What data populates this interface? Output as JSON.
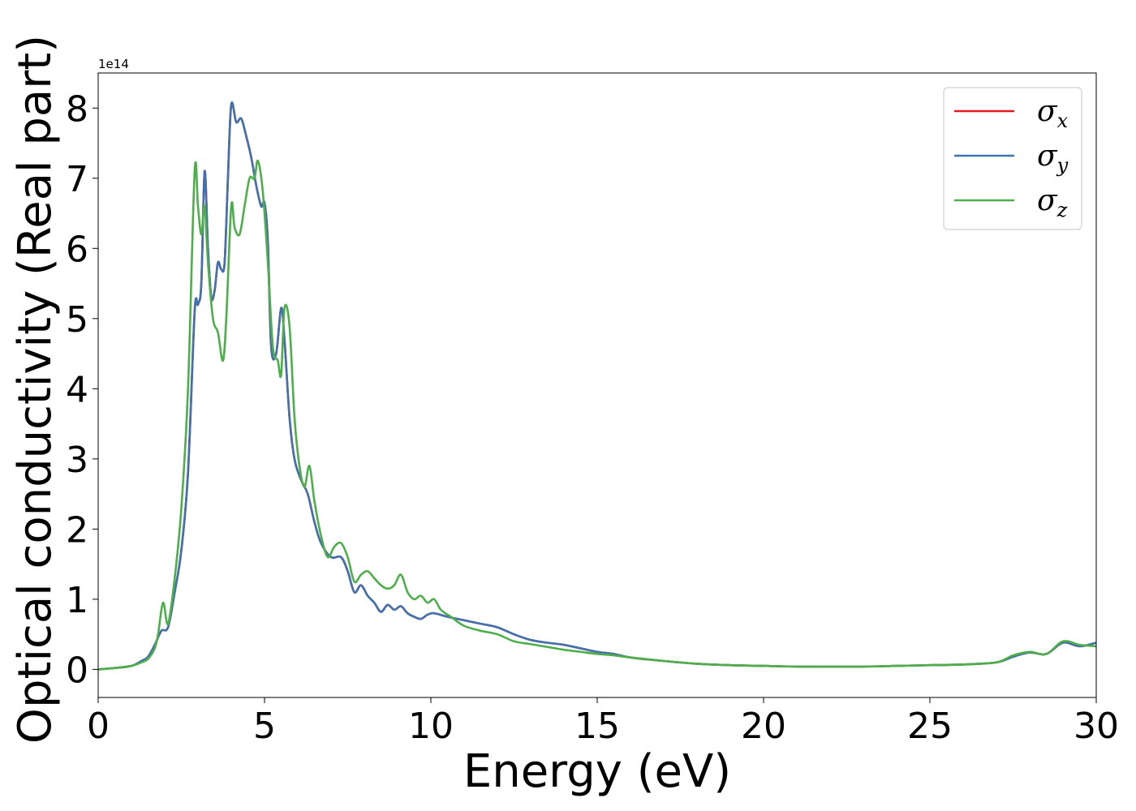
{
  "chart_data": {
    "type": "line",
    "xlabel": "Energy (eV)",
    "ylabel": "Optical conductivity (Real part)",
    "y_offset_label": "1e14",
    "xlim": [
      0,
      30
    ],
    "ylim": [
      -0.4,
      8.5
    ],
    "xticks": [
      0,
      5,
      10,
      15,
      20,
      25,
      30
    ],
    "xtick_labels": [
      "0",
      "5",
      "10",
      "15",
      "20",
      "25",
      "30"
    ],
    "yticks": [
      0,
      1,
      2,
      3,
      4,
      5,
      6,
      7,
      8
    ],
    "ytick_labels": [
      "0",
      "1",
      "2",
      "3",
      "4",
      "5",
      "6",
      "7",
      "8"
    ],
    "grid": false,
    "legend_position": "top-right",
    "series": [
      {
        "name": "σx",
        "symbol": "σ",
        "subscript": "x",
        "color": "#e41a1c",
        "x": [
          0,
          0.5,
          1,
          1.3,
          1.5,
          1.7,
          1.9,
          2.1,
          2.3,
          2.5,
          2.7,
          2.9,
          3.0,
          3.1,
          3.2,
          3.3,
          3.4,
          3.5,
          3.6,
          3.7,
          3.8,
          3.9,
          4.0,
          4.15,
          4.3,
          4.45,
          4.6,
          4.75,
          4.9,
          5.0,
          5.1,
          5.2,
          5.35,
          5.5,
          5.6,
          5.75,
          5.9,
          6.1,
          6.3,
          6.5,
          6.7,
          7.0,
          7.3,
          7.5,
          7.7,
          7.9,
          8.1,
          8.3,
          8.5,
          8.7,
          8.9,
          9.1,
          9.3,
          9.5,
          9.7,
          9.9,
          10.1,
          10.5,
          11,
          11.5,
          12,
          12.5,
          13,
          13.5,
          14,
          14.5,
          15,
          15.5,
          16,
          17,
          18,
          19,
          20,
          21,
          22,
          23,
          24,
          25,
          26,
          27,
          27.5,
          28,
          28.5,
          29,
          29.5,
          30
        ],
        "y": [
          0,
          0.02,
          0.05,
          0.12,
          0.18,
          0.35,
          0.55,
          0.6,
          1.1,
          1.7,
          2.8,
          5.1,
          5.2,
          5.5,
          7.1,
          6.0,
          5.3,
          5.4,
          5.8,
          5.7,
          5.8,
          7.0,
          8.05,
          7.8,
          7.85,
          7.6,
          7.3,
          6.9,
          6.6,
          6.65,
          6.1,
          4.6,
          4.5,
          5.15,
          4.7,
          3.6,
          3.0,
          2.7,
          2.5,
          2.1,
          1.8,
          1.6,
          1.6,
          1.4,
          1.1,
          1.2,
          1.05,
          0.95,
          0.82,
          0.92,
          0.85,
          0.9,
          0.8,
          0.75,
          0.72,
          0.78,
          0.8,
          0.75,
          0.7,
          0.65,
          0.6,
          0.5,
          0.42,
          0.38,
          0.35,
          0.3,
          0.25,
          0.22,
          0.17,
          0.12,
          0.08,
          0.06,
          0.05,
          0.04,
          0.04,
          0.04,
          0.05,
          0.06,
          0.07,
          0.1,
          0.18,
          0.24,
          0.22,
          0.38,
          0.33,
          0.38
        ]
      },
      {
        "name": "σy",
        "symbol": "σ",
        "subscript": "y",
        "color": "#3f72af",
        "x": [
          0,
          0.5,
          1,
          1.3,
          1.5,
          1.7,
          1.9,
          2.1,
          2.3,
          2.5,
          2.7,
          2.9,
          3.0,
          3.1,
          3.2,
          3.3,
          3.4,
          3.5,
          3.6,
          3.7,
          3.8,
          3.9,
          4.0,
          4.15,
          4.3,
          4.45,
          4.6,
          4.75,
          4.9,
          5.0,
          5.1,
          5.2,
          5.35,
          5.5,
          5.6,
          5.75,
          5.9,
          6.1,
          6.3,
          6.5,
          6.7,
          7.0,
          7.3,
          7.5,
          7.7,
          7.9,
          8.1,
          8.3,
          8.5,
          8.7,
          8.9,
          9.1,
          9.3,
          9.5,
          9.7,
          9.9,
          10.1,
          10.5,
          11,
          11.5,
          12,
          12.5,
          13,
          13.5,
          14,
          14.5,
          15,
          15.5,
          16,
          17,
          18,
          19,
          20,
          21,
          22,
          23,
          24,
          25,
          26,
          27,
          27.5,
          28,
          28.5,
          29,
          29.5,
          30
        ],
        "y": [
          0,
          0.02,
          0.05,
          0.12,
          0.18,
          0.35,
          0.55,
          0.6,
          1.1,
          1.7,
          2.8,
          5.1,
          5.2,
          5.5,
          7.1,
          6.0,
          5.3,
          5.4,
          5.8,
          5.7,
          5.8,
          7.0,
          8.05,
          7.8,
          7.85,
          7.6,
          7.3,
          6.9,
          6.6,
          6.65,
          6.1,
          4.6,
          4.5,
          5.15,
          4.7,
          3.6,
          3.0,
          2.7,
          2.5,
          2.1,
          1.8,
          1.6,
          1.6,
          1.4,
          1.1,
          1.2,
          1.05,
          0.95,
          0.82,
          0.92,
          0.85,
          0.9,
          0.8,
          0.75,
          0.72,
          0.78,
          0.8,
          0.75,
          0.7,
          0.65,
          0.6,
          0.5,
          0.42,
          0.38,
          0.35,
          0.3,
          0.25,
          0.22,
          0.17,
          0.12,
          0.08,
          0.06,
          0.05,
          0.04,
          0.04,
          0.04,
          0.05,
          0.06,
          0.07,
          0.1,
          0.18,
          0.24,
          0.22,
          0.38,
          0.33,
          0.38
        ]
      },
      {
        "name": "σz",
        "symbol": "σ",
        "subscript": "z",
        "color": "#4daf4a",
        "x": [
          0,
          0.5,
          1,
          1.3,
          1.5,
          1.7,
          1.8,
          1.95,
          2.1,
          2.3,
          2.5,
          2.7,
          2.9,
          3.0,
          3.1,
          3.2,
          3.3,
          3.45,
          3.6,
          3.75,
          3.85,
          4.0,
          4.1,
          4.25,
          4.4,
          4.55,
          4.7,
          4.8,
          4.95,
          5.1,
          5.25,
          5.4,
          5.5,
          5.6,
          5.75,
          5.9,
          6.05,
          6.2,
          6.35,
          6.5,
          6.7,
          6.9,
          7.1,
          7.3,
          7.5,
          7.7,
          7.9,
          8.1,
          8.3,
          8.5,
          8.7,
          8.9,
          9.1,
          9.3,
          9.5,
          9.7,
          9.9,
          10.1,
          10.3,
          10.6,
          11,
          11.5,
          12,
          12.5,
          13,
          13.5,
          14,
          14.5,
          15,
          15.5,
          16,
          17,
          18,
          19,
          20,
          21,
          22,
          23,
          24,
          25,
          26,
          27,
          27.5,
          28,
          28.5,
          29,
          29.5,
          30
        ],
        "y": [
          0,
          0.02,
          0.05,
          0.1,
          0.15,
          0.3,
          0.5,
          0.95,
          0.65,
          1.3,
          2.3,
          4.0,
          7.1,
          6.6,
          6.2,
          6.6,
          5.8,
          5.0,
          4.8,
          4.4,
          5.0,
          6.6,
          6.3,
          6.2,
          6.6,
          7.0,
          7.0,
          7.25,
          6.8,
          5.8,
          4.6,
          4.4,
          4.2,
          5.15,
          4.9,
          3.6,
          2.9,
          2.6,
          2.9,
          2.4,
          1.9,
          1.6,
          1.75,
          1.8,
          1.6,
          1.25,
          1.35,
          1.4,
          1.3,
          1.2,
          1.15,
          1.2,
          1.35,
          1.1,
          1.0,
          1.05,
          0.95,
          1.0,
          0.85,
          0.75,
          0.62,
          0.55,
          0.5,
          0.4,
          0.36,
          0.32,
          0.28,
          0.25,
          0.22,
          0.2,
          0.17,
          0.12,
          0.08,
          0.06,
          0.05,
          0.04,
          0.04,
          0.04,
          0.05,
          0.06,
          0.07,
          0.1,
          0.2,
          0.25,
          0.22,
          0.4,
          0.35,
          0.33
        ]
      }
    ]
  }
}
